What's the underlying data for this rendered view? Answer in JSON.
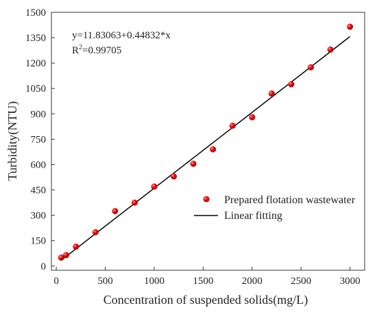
{
  "chart_data": {
    "type": "scatter",
    "xlabel": "Concentration of suspended solids(mg/L)",
    "ylabel": "Turbidity(NTU)",
    "xlim": [
      -50,
      3150
    ],
    "ylim": [
      -25,
      1500
    ],
    "xticks": [
      0,
      500,
      1000,
      1500,
      2000,
      2500,
      3000
    ],
    "yticks": [
      0,
      150,
      300,
      450,
      600,
      750,
      900,
      1050,
      1200,
      1350,
      1500
    ],
    "grid": false,
    "legend_position": "bottom-right",
    "annotation": {
      "equation": "y=11.83063+0.44832*x",
      "r2_prefix": "R",
      "r2_sup": "2",
      "r2_value": "=0.99705"
    },
    "series": [
      {
        "name": "Prepared flotation wastewater",
        "kind": "scatter",
        "color": "#e00000",
        "x": [
          50,
          100,
          200,
          400,
          600,
          800,
          1000,
          1200,
          1400,
          1600,
          1800,
          2000,
          2200,
          2400,
          2600,
          2800,
          3000
        ],
        "y": [
          50,
          65,
          115,
          200,
          325,
          375,
          470,
          530,
          605,
          690,
          830,
          880,
          1020,
          1075,
          1175,
          1280,
          1415
        ]
      },
      {
        "name": "Linear fitting",
        "kind": "line",
        "color": "#000000",
        "intercept": 11.83063,
        "slope": 0.44832,
        "x_range": [
          50,
          3000
        ]
      }
    ]
  }
}
